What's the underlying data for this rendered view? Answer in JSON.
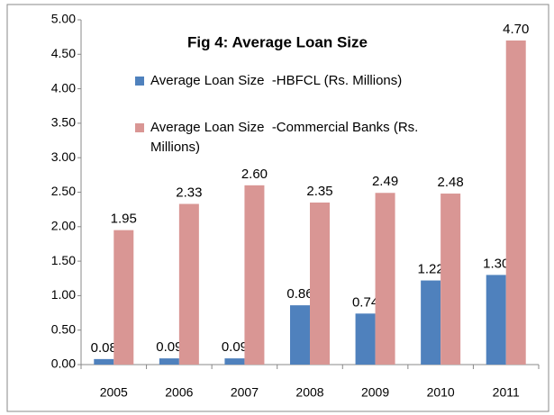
{
  "chart_data": {
    "type": "bar",
    "title": "Fig 4: Average Loan Size",
    "categories": [
      "2005",
      "2006",
      "2007",
      "2008",
      "2009",
      "2010",
      "2011"
    ],
    "series": [
      {
        "name": "Average Loan Size  -HBFCL (Rs. Millions)",
        "color": "#4f81bd",
        "values": [
          0.08,
          0.09,
          0.09,
          0.86,
          0.74,
          1.22,
          1.3
        ],
        "value_labels": [
          "0.08",
          "0.09",
          "0.09",
          "0.86",
          "0.74",
          "1.22",
          "1.30"
        ]
      },
      {
        "name": "Average Loan Size  -Commercial Banks (Rs. Millions)",
        "color": "#d99694",
        "values": [
          1.95,
          2.33,
          2.6,
          2.35,
          2.49,
          2.48,
          4.7
        ],
        "value_labels": [
          "1.95",
          "2.33",
          "2.60",
          "2.35",
          "2.49",
          "2.48",
          "4.70"
        ]
      }
    ],
    "ylim": [
      0,
      5
    ],
    "yticks": [
      {
        "value": 0,
        "label": "0.00"
      },
      {
        "value": 0.5,
        "label": "0.50"
      },
      {
        "value": 1,
        "label": "1.00"
      },
      {
        "value": 1.5,
        "label": "1.50"
      },
      {
        "value": 2,
        "label": "2.00"
      },
      {
        "value": 2.5,
        "label": "2.50"
      },
      {
        "value": 3,
        "label": "3.00"
      },
      {
        "value": 3.5,
        "label": "3.50"
      },
      {
        "value": 4,
        "label": "4.00"
      },
      {
        "value": 4.5,
        "label": "4.50"
      },
      {
        "value": 5,
        "label": "5.00"
      }
    ],
    "grid": false
  }
}
